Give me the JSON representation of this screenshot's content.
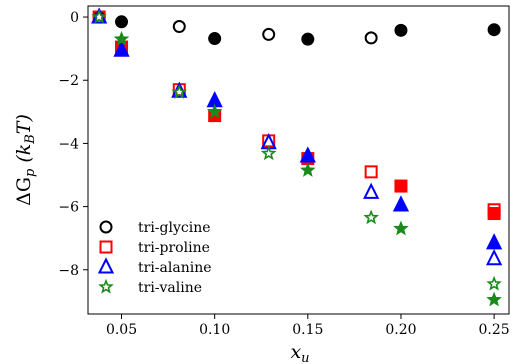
{
  "chart_data": {
    "type": "scatter",
    "xlabel": "x",
    "xlabel_sub": "u",
    "ylabel": "ΔG",
    "ylabel_sub": "p",
    "ylabel_unit_open": "(k",
    "ylabel_unit_sub": "B",
    "ylabel_unit_close": "T)",
    "xlim": [
      0.032,
      0.258
    ],
    "ylim": [
      -9.4,
      0.35
    ],
    "xticks": [
      0.05,
      0.1,
      0.15,
      0.2,
      0.25
    ],
    "xtick_labels": [
      "0.05",
      "0.10",
      "0.15",
      "0.20",
      "0.25"
    ],
    "yticks": [
      0,
      -2,
      -4,
      -6,
      -8
    ],
    "ytick_labels": [
      "0",
      "−2",
      "−4",
      "−6",
      "−8"
    ],
    "grid": false,
    "legend_position": "bottom-left",
    "series": [
      {
        "name": "tri-glycine",
        "marker": "circle",
        "color": "#000000",
        "points": [
          {
            "x": 0.038,
            "y": 0.0,
            "filled": false
          },
          {
            "x": 0.05,
            "y": -0.15,
            "filled": true
          },
          {
            "x": 0.081,
            "y": -0.3,
            "filled": false
          },
          {
            "x": 0.1,
            "y": -0.68,
            "filled": true
          },
          {
            "x": 0.129,
            "y": -0.55,
            "filled": false
          },
          {
            "x": 0.15,
            "y": -0.7,
            "filled": true
          },
          {
            "x": 0.184,
            "y": -0.66,
            "filled": false
          },
          {
            "x": 0.2,
            "y": -0.42,
            "filled": true
          },
          {
            "x": 0.25,
            "y": -0.4,
            "filled": true
          }
        ]
      },
      {
        "name": "tri-proline",
        "marker": "square",
        "color": "#ff0000",
        "points": [
          {
            "x": 0.038,
            "y": 0.0,
            "filled": false
          },
          {
            "x": 0.05,
            "y": -0.95,
            "filled": true
          },
          {
            "x": 0.081,
            "y": -2.3,
            "filled": false
          },
          {
            "x": 0.1,
            "y": -3.12,
            "filled": true
          },
          {
            "x": 0.129,
            "y": -3.92,
            "filled": false
          },
          {
            "x": 0.15,
            "y": -4.48,
            "filled": true
          },
          {
            "x": 0.184,
            "y": -4.9,
            "filled": false
          },
          {
            "x": 0.2,
            "y": -5.35,
            "filled": true
          },
          {
            "x": 0.25,
            "y": -6.1,
            "filled": false
          },
          {
            "x": 0.25,
            "y": -6.22,
            "filled": true
          }
        ]
      },
      {
        "name": "tri-alanine",
        "marker": "triangle",
        "color": "#0000ff",
        "points": [
          {
            "x": 0.038,
            "y": 0.0,
            "filled": false
          },
          {
            "x": 0.05,
            "y": -1.05,
            "filled": true
          },
          {
            "x": 0.081,
            "y": -2.35,
            "filled": false
          },
          {
            "x": 0.1,
            "y": -2.65,
            "filled": true
          },
          {
            "x": 0.129,
            "y": -3.98,
            "filled": false
          },
          {
            "x": 0.15,
            "y": -4.4,
            "filled": true
          },
          {
            "x": 0.184,
            "y": -5.55,
            "filled": false
          },
          {
            "x": 0.2,
            "y": -5.95,
            "filled": true
          },
          {
            "x": 0.25,
            "y": -7.15,
            "filled": true
          },
          {
            "x": 0.25,
            "y": -7.65,
            "filled": false
          }
        ]
      },
      {
        "name": "tri-valine",
        "marker": "star",
        "color": "#1a8a1a",
        "points": [
          {
            "x": 0.038,
            "y": 0.0,
            "filled": false
          },
          {
            "x": 0.05,
            "y": -0.7,
            "filled": true
          },
          {
            "x": 0.081,
            "y": -2.38,
            "filled": false
          },
          {
            "x": 0.1,
            "y": -3.0,
            "filled": true
          },
          {
            "x": 0.129,
            "y": -4.32,
            "filled": false
          },
          {
            "x": 0.15,
            "y": -4.85,
            "filled": true
          },
          {
            "x": 0.184,
            "y": -6.35,
            "filled": false
          },
          {
            "x": 0.2,
            "y": -6.7,
            "filled": true
          },
          {
            "x": 0.25,
            "y": -8.45,
            "filled": false
          },
          {
            "x": 0.25,
            "y": -8.95,
            "filled": true
          }
        ]
      }
    ]
  }
}
